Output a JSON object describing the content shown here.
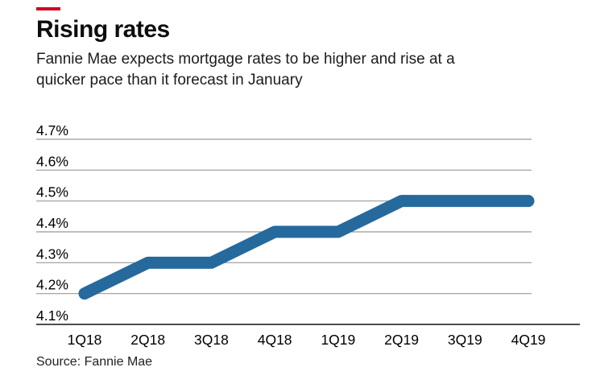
{
  "brand": {
    "dash_color": "#d0021b"
  },
  "header": {
    "title": "Rising rates",
    "subtitle_line1": "Fannie Mae expects mortgage rates to be higher and rise at a",
    "subtitle_line2": "quicker pace than it forecast in January"
  },
  "footer": {
    "source": "Source: Fannie Mae"
  },
  "chart_data": {
    "type": "line",
    "title": "Rising rates",
    "xlabel": "",
    "ylabel": "",
    "categories": [
      "1Q18",
      "2Q18",
      "3Q18",
      "4Q18",
      "1Q19",
      "2Q19",
      "3Q19",
      "4Q19"
    ],
    "values": [
      4.2,
      4.3,
      4.3,
      4.4,
      4.4,
      4.5,
      4.5,
      4.5
    ],
    "ylim": [
      4.1,
      4.7
    ],
    "y_ticks": [
      {
        "v": 4.7,
        "label": "4.7%"
      },
      {
        "v": 4.6,
        "label": "4.6%"
      },
      {
        "v": 4.5,
        "label": "4.5%"
      },
      {
        "v": 4.4,
        "label": "4.4%"
      },
      {
        "v": 4.3,
        "label": "4.3%"
      },
      {
        "v": 4.2,
        "label": "4.2%"
      },
      {
        "v": 4.1,
        "label": "4.1%"
      }
    ],
    "grid": true,
    "legend": "none",
    "line_color": "#26699c",
    "grid_color": "#999999",
    "axis_color": "#4d4d4d",
    "label_color": "#000000"
  }
}
